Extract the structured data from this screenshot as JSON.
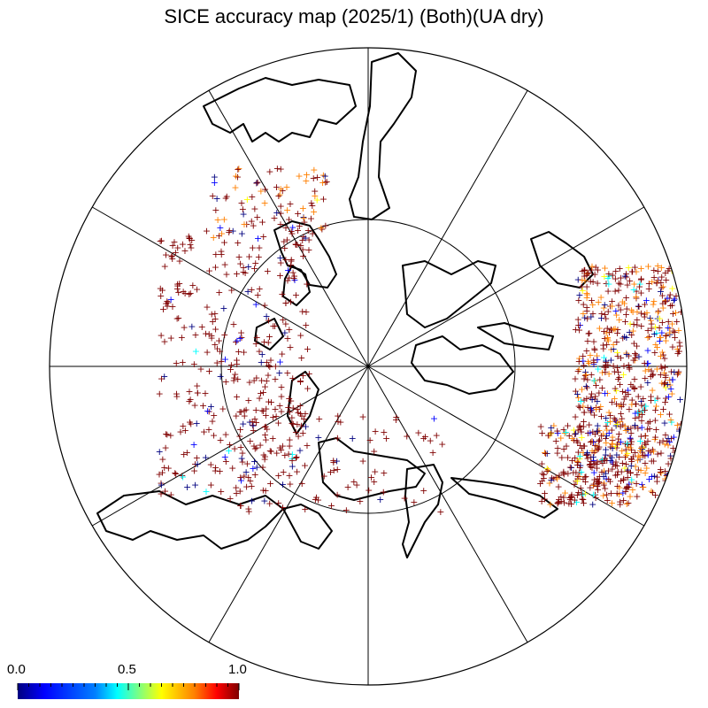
{
  "title": "SICE accuracy map (2025/1) (Both)(UA dry)",
  "projection": "north polar stereographic",
  "colorbar": {
    "min_label": "0.0",
    "mid_label": "0.5",
    "max_label": "1.0",
    "colors": [
      "#00007f",
      "#0000ff",
      "#007fff",
      "#00ffff",
      "#7fff7f",
      "#ffff00",
      "#ff7f00",
      "#ff0000",
      "#7f0000"
    ]
  },
  "marker": "+",
  "colors": {
    "coast": "#000000",
    "grid": "#000000",
    "dominant_marker": "#8b0000"
  }
}
